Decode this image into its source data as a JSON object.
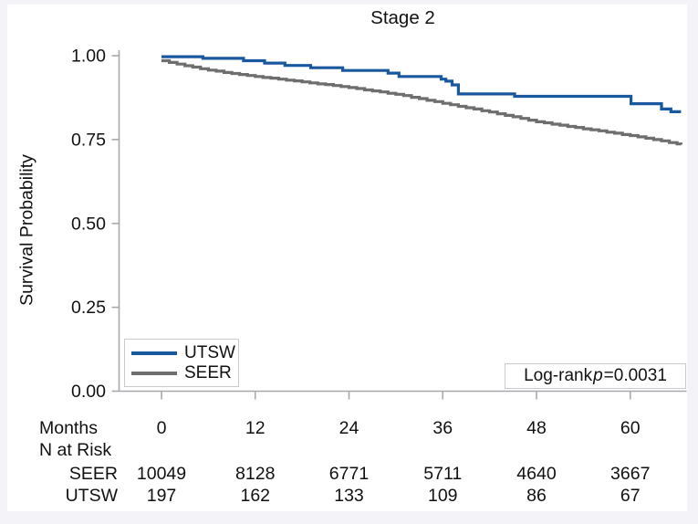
{
  "title": "Stage 2",
  "ylabel": "Survival Probability",
  "colors": {
    "utsw": "#19589f",
    "seer": "#6e6e6e",
    "axis": "#a8a8ae",
    "text": "#111111",
    "margin_bg": "#f3f3f8",
    "plot_bg": "#ffffff",
    "box_border": "#c9c9ce"
  },
  "legend": {
    "items": [
      {
        "label": "UTSW",
        "color_key": "utsw"
      },
      {
        "label": "SEER",
        "color_key": "seer"
      }
    ]
  },
  "annotation": {
    "prefix": "Log-rank",
    "p_symbol": "p",
    "value": "=0.0031"
  },
  "risk_table": {
    "months_label": "Months",
    "months_values": [
      "0",
      "12",
      "24",
      "36",
      "48",
      "60"
    ],
    "n_at_risk_label": "N at Risk",
    "rows": [
      {
        "label": "SEER",
        "values": [
          "10049",
          "8128",
          "6771",
          "5711",
          "4640",
          "3667"
        ]
      },
      {
        "label": "UTSW",
        "values": [
          "197",
          "162",
          "133",
          "109",
          "86",
          "67"
        ]
      }
    ]
  },
  "chart_data": {
    "type": "line",
    "subtype": "kaplan-meier-step",
    "title": "Stage 2",
    "xlabel": "Months",
    "ylabel": "Survival Probability",
    "x_ticks": [
      0,
      12,
      24,
      36,
      48,
      60
    ],
    "y_ticks": [
      1.0,
      0.75,
      0.5,
      0.25,
      0.0
    ],
    "y_tick_labels": [
      "1.00",
      "0.75",
      "0.50",
      "0.25",
      "0.00"
    ],
    "xlim": [
      0,
      66.5
    ],
    "ylim": [
      0,
      1
    ],
    "grid": false,
    "legend_position": "lower-left",
    "annotation_text": "Log-rank p=0.0031",
    "series": [
      {
        "name": "UTSW",
        "color": "#19589f",
        "steps": [
          [
            0,
            0.997
          ],
          [
            5.3,
            0.992
          ],
          [
            10.5,
            0.985
          ],
          [
            13.2,
            0.978
          ],
          [
            15.8,
            0.971
          ],
          [
            19.1,
            0.964
          ],
          [
            23.2,
            0.956
          ],
          [
            29,
            0.948
          ],
          [
            30.4,
            0.938
          ],
          [
            35.8,
            0.93
          ],
          [
            36.4,
            0.924
          ],
          [
            37.2,
            0.913
          ],
          [
            38,
            0.886
          ],
          [
            45.2,
            0.879
          ],
          [
            60.1,
            0.857
          ],
          [
            64,
            0.841
          ],
          [
            65.2,
            0.833
          ],
          [
            66.5,
            0.833
          ]
        ]
      },
      {
        "name": "SEER",
        "color": "#6e6e6e",
        "steps": [
          [
            0,
            0.985
          ],
          [
            1,
            0.98
          ],
          [
            2,
            0.975
          ],
          [
            3,
            0.97
          ],
          [
            4,
            0.966
          ],
          [
            5,
            0.961
          ],
          [
            6,
            0.957
          ],
          [
            7,
            0.954
          ],
          [
            8,
            0.95
          ],
          [
            9,
            0.947
          ],
          [
            10,
            0.944
          ],
          [
            11,
            0.941
          ],
          [
            12,
            0.938
          ],
          [
            13,
            0.935
          ],
          [
            14,
            0.933
          ],
          [
            15,
            0.93
          ],
          [
            16,
            0.927
          ],
          [
            17,
            0.925
          ],
          [
            18,
            0.922
          ],
          [
            19,
            0.919
          ],
          [
            20,
            0.916
          ],
          [
            21,
            0.914
          ],
          [
            22,
            0.911
          ],
          [
            23,
            0.908
          ],
          [
            24,
            0.905
          ],
          [
            25,
            0.902
          ],
          [
            26,
            0.898
          ],
          [
            27,
            0.895
          ],
          [
            28,
            0.892
          ],
          [
            29,
            0.888
          ],
          [
            30,
            0.885
          ],
          [
            31,
            0.881
          ],
          [
            32,
            0.876
          ],
          [
            33,
            0.872
          ],
          [
            34,
            0.867
          ],
          [
            35,
            0.863
          ],
          [
            36,
            0.858
          ],
          [
            37,
            0.854
          ],
          [
            38,
            0.849
          ],
          [
            39,
            0.845
          ],
          [
            40,
            0.841
          ],
          [
            41,
            0.836
          ],
          [
            42,
            0.832
          ],
          [
            43,
            0.827
          ],
          [
            44,
            0.822
          ],
          [
            45,
            0.818
          ],
          [
            46,
            0.813
          ],
          [
            47,
            0.808
          ],
          [
            48,
            0.803
          ],
          [
            49,
            0.8
          ],
          [
            50,
            0.796
          ],
          [
            51,
            0.793
          ],
          [
            52,
            0.789
          ],
          [
            53,
            0.786
          ],
          [
            54,
            0.782
          ],
          [
            55,
            0.779
          ],
          [
            56,
            0.776
          ],
          [
            57,
            0.772
          ],
          [
            58,
            0.769
          ],
          [
            59,
            0.765
          ],
          [
            60,
            0.762
          ],
          [
            61,
            0.758
          ],
          [
            62,
            0.754
          ],
          [
            63,
            0.75
          ],
          [
            64,
            0.746
          ],
          [
            65,
            0.741
          ],
          [
            66,
            0.737
          ],
          [
            66.5,
            0.735
          ]
        ]
      }
    ]
  }
}
